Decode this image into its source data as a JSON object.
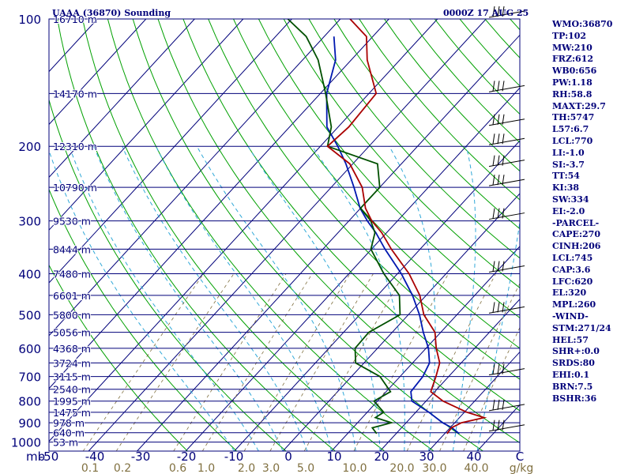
{
  "header": {
    "station": "UAAA (36870) Sounding",
    "time": "0000Z 17 AUG 25"
  },
  "indices": [
    "WMO:36870",
    "TP:102",
    "MW:210",
    "FRZ:612",
    "WB0:656",
    "PW:1.18",
    "RH:58.8",
    "MAXT:29.7",
    "TH:5747",
    "L57:6.7",
    "LCL:770",
    "LI:-1.0",
    "SI:-3.7",
    "TT:54",
    "KI:38",
    "SW:334",
    "EI:-2.0",
    "-PARCEL-",
    "CAPE:270",
    "CINH:206",
    "LCL:745",
    "CAP:3.6",
    "LFC:620",
    "EL:320",
    "MPL:260",
    "-WIND-",
    "STM:271/24",
    "HEL:57",
    "SHR+:0.0",
    "SRDS:80",
    "EHI:0.1",
    "BRN:7.5",
    "BSHR:36"
  ],
  "colors": {
    "frame": "#00007a",
    "isobar": "#00007a",
    "isotherm": "#00007a",
    "dry_adiabat": "#00a000",
    "moist_adiabat": "#30a8d8",
    "mixing_ratio": "#807040",
    "temperature": "#aa0000",
    "dewpoint": "#005000",
    "parcel": "#0018b0",
    "label": "#00007a",
    "mixing_label": "#807040"
  },
  "chart_data": {
    "type": "line",
    "title": "UAAA (36870) Sounding",
    "subtitle": "0000Z 17 AUG 25",
    "pressure_levels": [
      {
        "p": 100,
        "label": "100",
        "height": "16710 m"
      },
      {
        "p": 150,
        "label": "",
        "height": "14170 m"
      },
      {
        "p": 200,
        "label": "200",
        "height": "12310 m"
      },
      {
        "p": 250,
        "label": "",
        "height": "10790 m"
      },
      {
        "p": 300,
        "label": "300",
        "height": "9530 m"
      },
      {
        "p": 350,
        "label": "",
        "height": "8444 m"
      },
      {
        "p": 400,
        "label": "400",
        "height": "7480 m"
      },
      {
        "p": 450,
        "label": "",
        "height": "6601 m"
      },
      {
        "p": 500,
        "label": "500",
        "height": "5800 m"
      },
      {
        "p": 550,
        "label": "",
        "height": "5056 m"
      },
      {
        "p": 600,
        "label": "600",
        "height": "4368 m"
      },
      {
        "p": 650,
        "label": "",
        "height": "3724 m"
      },
      {
        "p": 700,
        "label": "700",
        "height": "3115 m"
      },
      {
        "p": 750,
        "label": "",
        "height": "2540 m"
      },
      {
        "p": 800,
        "label": "800",
        "height": "1995 m"
      },
      {
        "p": 850,
        "label": "",
        "height": "1475 m"
      },
      {
        "p": 900,
        "label": "900",
        "height": "978 m"
      },
      {
        "p": 950,
        "label": "",
        "height": "640 m"
      },
      {
        "p": 1000,
        "label": "1000",
        "height": "53 m"
      }
    ],
    "temperature_ticks": [
      "-50",
      "-40",
      "-30",
      "-20",
      "-10",
      "0",
      "10",
      "20",
      "30",
      "40",
      "C"
    ],
    "mixing_ratio_labels": [
      "0.1",
      "0.2",
      "0.6",
      "1.0",
      "2.0",
      "3.0",
      "5.0",
      "10.0",
      "20.0",
      "30.0",
      "40.0",
      "g/kg"
    ],
    "axis_unit_left": "mb",
    "temperature": [
      [
        955,
        30.5
      ],
      [
        925,
        30.3
      ],
      [
        900,
        31.4
      ],
      [
        875,
        35.1
      ],
      [
        850,
        30.5
      ],
      [
        800,
        23.5
      ],
      [
        760,
        19.2
      ],
      [
        700,
        17.4
      ],
      [
        650,
        15.6
      ],
      [
        600,
        12.1
      ],
      [
        550,
        8.8
      ],
      [
        500,
        3.2
      ],
      [
        450,
        -1.3
      ],
      [
        400,
        -7.6
      ],
      [
        350,
        -15.9
      ],
      [
        320,
        -21.0
      ],
      [
        300,
        -25.3
      ],
      [
        280,
        -29.0
      ],
      [
        250,
        -33.6
      ],
      [
        220,
        -40.6
      ],
      [
        200,
        -48.5
      ],
      [
        180,
        -47.8
      ],
      [
        150,
        -48.5
      ],
      [
        125,
        -56.7
      ],
      [
        110,
        -61.3
      ],
      [
        100,
        -68.0
      ]
    ],
    "dewpoint": [
      [
        955,
        16.0
      ],
      [
        925,
        14.0
      ],
      [
        900,
        17.0
      ],
      [
        875,
        12.7
      ],
      [
        850,
        13.4
      ],
      [
        800,
        9.3
      ],
      [
        760,
        10.9
      ],
      [
        700,
        5.9
      ],
      [
        650,
        -1.7
      ],
      [
        600,
        -4.6
      ],
      [
        550,
        -4.8
      ],
      [
        500,
        -1.7
      ],
      [
        450,
        -5.5
      ],
      [
        400,
        -12.8
      ],
      [
        350,
        -20.1
      ],
      [
        320,
        -22.4
      ],
      [
        300,
        -25.5
      ],
      [
        280,
        -30.0
      ],
      [
        250,
        -30.0
      ],
      [
        220,
        -34.9
      ],
      [
        200,
        -48.5
      ],
      [
        180,
        -51.4
      ],
      [
        150,
        -58.9
      ],
      [
        125,
        -66.8
      ],
      [
        110,
        -73.7
      ],
      [
        100,
        -80.8
      ]
    ],
    "parcel": [
      [
        955,
        33.0
      ],
      [
        925,
        30.4
      ],
      [
        900,
        27.5
      ],
      [
        850,
        22.7
      ],
      [
        800,
        17.1
      ],
      [
        760,
        15.1
      ],
      [
        700,
        14.7
      ],
      [
        650,
        13.5
      ],
      [
        600,
        10.5
      ],
      [
        550,
        6.4
      ],
      [
        500,
        2.3
      ],
      [
        450,
        -2.8
      ],
      [
        400,
        -9.2
      ],
      [
        350,
        -17.2
      ],
      [
        320,
        -22.2
      ],
      [
        300,
        -26.2
      ],
      [
        280,
        -30.1
      ],
      [
        250,
        -35.3
      ],
      [
        220,
        -41.4
      ],
      [
        200,
        -46.4
      ],
      [
        180,
        -52.3
      ],
      [
        150,
        -58.7
      ],
      [
        125,
        -63.2
      ],
      [
        110,
        -68.0
      ]
    ],
    "wind_barb_pressures": [
      100,
      150,
      180,
      200,
      225,
      250,
      300,
      400,
      500,
      700,
      850,
      950
    ]
  }
}
